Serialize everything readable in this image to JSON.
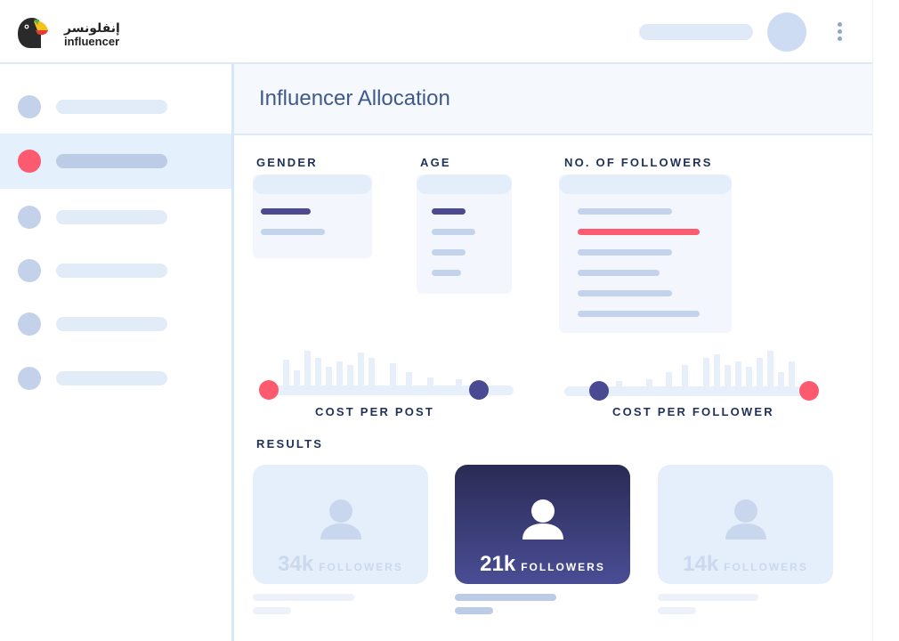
{
  "brand": {
    "arabic": "إنفلونسر",
    "english": "influencer"
  },
  "page": {
    "title": "Influencer Allocation"
  },
  "filters": {
    "gender": {
      "label": "GENDER"
    },
    "age": {
      "label": "AGE"
    },
    "followers": {
      "label": "NO. OF FOLLOWERS"
    }
  },
  "sliders": {
    "cost_per_post": {
      "label": "COST PER POST"
    },
    "cost_per_follower": {
      "label": "COST PER FOLLOWER"
    }
  },
  "results": {
    "label": "RESULTS",
    "cards": [
      {
        "value": "34k",
        "unit": "FOLLOWERS",
        "selected": false
      },
      {
        "value": "21k",
        "unit": "FOLLOWERS",
        "selected": true
      },
      {
        "value": "14k",
        "unit": "FOLLOWERS",
        "selected": false
      }
    ]
  },
  "icons": {
    "logo": "toucan-logo-icon",
    "menu": "kebab-menu-icon",
    "person": "person-icon"
  },
  "colors": {
    "accent_red": "#fb5a6f",
    "accent_purple": "#4a4a92",
    "title": "#40598c",
    "label": "#1f3158"
  }
}
